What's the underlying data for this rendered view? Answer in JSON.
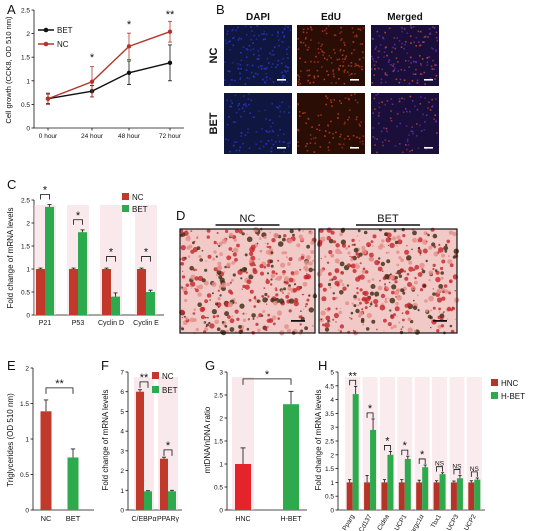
{
  "colors": {
    "nc": "#c0392b",
    "bet": "#2eaa4e",
    "black": "#111111",
    "dapi": "#2a34c8",
    "edu": "#b83a1e",
    "merged": "#6a2fb0",
    "pink": "#f4d2da",
    "grid": "#000000"
  },
  "panel_letters": [
    "A",
    "B",
    "C",
    "D",
    "E",
    "F",
    "G",
    "H"
  ],
  "panel_b": {
    "col_titles": [
      "DAPI",
      "EdU",
      "Merged"
    ],
    "row_labels": [
      "NC",
      "BET"
    ]
  },
  "panel_d": {
    "labels": [
      "NC",
      "BET"
    ]
  },
  "chart_data": [
    {
      "id": "A",
      "type": "line",
      "ylabel": "Cell growth (CCK8, OD 510 nm)",
      "categories": [
        "0 hour",
        "24 hour",
        "48 hour",
        "72 hour"
      ],
      "ylim": [
        0,
        2.5
      ],
      "yticks": [
        0,
        0.5,
        1,
        1.5,
        2,
        2.5
      ],
      "series": [
        {
          "name": "BET",
          "color": "#111111",
          "values": [
            0.62,
            0.78,
            1.17,
            1.38
          ],
          "errors": [
            0.1,
            0.12,
            0.25,
            0.38
          ]
        },
        {
          "name": "NC",
          "color": "#b5342a",
          "values": [
            0.62,
            0.98,
            1.73,
            2.04
          ],
          "errors": [
            0.12,
            0.32,
            0.28,
            0.22
          ]
        }
      ],
      "annotations": [
        "*",
        "*",
        "**"
      ]
    },
    {
      "id": "C",
      "type": "bar",
      "ylabel": "Fold change of mRNA levels",
      "categories": [
        "P21",
        "P53",
        "Cyclin D",
        "Cyclin E"
      ],
      "ylim": [
        0,
        2.5
      ],
      "yticks": [
        0,
        0.5,
        1,
        1.5,
        2,
        2.5
      ],
      "series": [
        {
          "name": "NC",
          "color": "#c0392b",
          "values": [
            1.0,
            1.0,
            1.0,
            1.0
          ],
          "errors": [
            0.02,
            0.02,
            0.02,
            0.02
          ]
        },
        {
          "name": "BET",
          "color": "#2eaa4e",
          "values": [
            2.35,
            1.8,
            0.4,
            0.5
          ],
          "errors": [
            0.05,
            0.05,
            0.08,
            0.04
          ]
        }
      ],
      "annotations": [
        "*",
        "*",
        "*",
        "*"
      ]
    },
    {
      "id": "E",
      "type": "bar",
      "ylabel": "Triglycerides (OD 510 nm)",
      "categories": [
        "NC",
        "BET"
      ],
      "ylim": [
        0,
        2
      ],
      "yticks": [
        0,
        0.5,
        1,
        1.5,
        2
      ],
      "values": [
        1.39,
        0.74
      ],
      "colors": [
        "#c0392b",
        "#2eaa4e"
      ],
      "errors": [
        0.16,
        0.12
      ],
      "annotations": [
        "**"
      ]
    },
    {
      "id": "F",
      "type": "bar",
      "ylabel": "Fold change of mRNA levels",
      "categories": [
        "C/EBPα",
        "PPARγ"
      ],
      "ylim": [
        0,
        7
      ],
      "yticks": [
        0,
        1,
        2,
        3,
        4,
        5,
        6,
        7
      ],
      "series": [
        {
          "name": "NC",
          "color": "#c0392b",
          "values": [
            6.0,
            2.6
          ],
          "errors": [
            0.1,
            0.08
          ]
        },
        {
          "name": "BET",
          "color": "#2eaa4e",
          "values": [
            0.95,
            0.95
          ],
          "errors": [
            0.03,
            0.05
          ]
        }
      ],
      "annotations": [
        "**",
        "*"
      ]
    },
    {
      "id": "G",
      "type": "bar",
      "ylabel": "mtDNA/nDNA ratio",
      "categories": [
        "HNC",
        "H-BET"
      ],
      "ylim": [
        0,
        3
      ],
      "yticks": [
        0,
        0.5,
        1,
        1.5,
        2,
        2.5,
        3
      ],
      "values": [
        1.0,
        2.3
      ],
      "colors": [
        "#e5232a",
        "#2eaa4e"
      ],
      "errors": [
        0.35,
        0.28
      ],
      "annotations": [
        "*"
      ]
    },
    {
      "id": "H",
      "type": "bar",
      "ylabel": "Fold change of mRNA levels",
      "categories": [
        "Pparg",
        "Cd137",
        "Cidea",
        "UCP1",
        "Ppargc1α",
        "Tbx1",
        "UCP3",
        "UCP2"
      ],
      "ylim": [
        0,
        5
      ],
      "yticks": [
        0,
        0.5,
        1,
        1.5,
        2,
        2.5,
        3,
        3.5,
        4,
        4.5,
        5
      ],
      "series": [
        {
          "name": "HNC",
          "color": "#b5342a",
          "values": [
            1,
            1,
            1,
            1,
            1,
            1,
            1,
            1
          ],
          "errors": [
            0.1,
            0.25,
            0.1,
            0.1,
            0.08,
            0.06,
            0.05,
            0.06
          ]
        },
        {
          "name": "H-BET",
          "color": "#2eaa4e",
          "values": [
            4.2,
            2.9,
            2.0,
            1.85,
            1.55,
            1.3,
            1.15,
            1.1
          ],
          "errors": [
            0.28,
            0.4,
            0.12,
            0.1,
            0.08,
            0.05,
            0.1,
            0.06
          ]
        }
      ],
      "annotations": [
        "**",
        "*",
        "*",
        "*",
        "*",
        "NS",
        "NS",
        "NS"
      ]
    }
  ]
}
